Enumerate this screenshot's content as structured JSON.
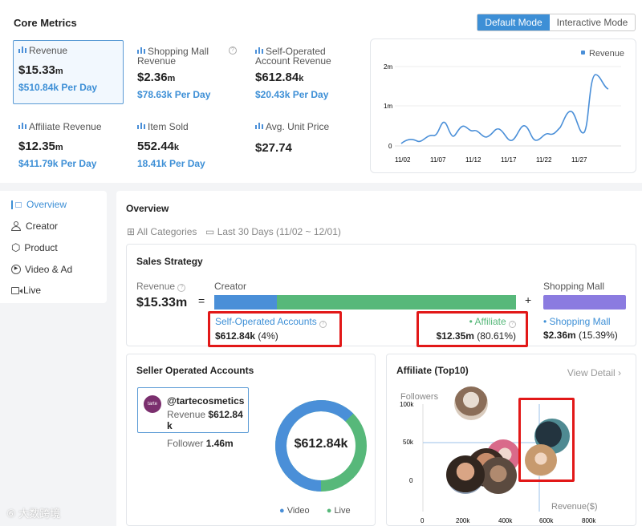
{
  "core_metrics": {
    "title": "Core Metrics",
    "mode_default": "Default Mode",
    "mode_interactive": "Interactive Mode",
    "metrics": [
      {
        "label": "Revenue",
        "value": "$15.33",
        "unit": "m",
        "per_day": "$510.84k Per Day"
      },
      {
        "label": "Shopping Mall Revenue",
        "value": "$2.36",
        "unit": "m",
        "per_day": "$78.63k Per Day"
      },
      {
        "label": "Self-Operated Account Revenue",
        "value": "$612.84",
        "unit": "k",
        "per_day": "$20.43k Per Day"
      },
      {
        "label": "Affiliate Revenue",
        "value": "$12.35",
        "unit": "m",
        "per_day": "$411.79k Per Day"
      },
      {
        "label": "Item Sold",
        "value": "552.44",
        "unit": "k",
        "per_day": "18.41k Per Day"
      },
      {
        "label": "Avg. Unit Price",
        "value": "$27.74",
        "unit": "",
        "per_day": ""
      }
    ],
    "chart": {
      "legend": "Revenue",
      "y_ticks": [
        "2m",
        "1m",
        "0"
      ],
      "x_ticks": [
        "11/02",
        "11/07",
        "11/12",
        "11/17",
        "11/22",
        "11/27"
      ]
    }
  },
  "sidebar": {
    "items": [
      {
        "label": "Overview",
        "icon": "overview-icon",
        "active": true
      },
      {
        "label": "Creator",
        "icon": "user-icon"
      },
      {
        "label": "Product",
        "icon": "box-icon"
      },
      {
        "label": "Video & Ad",
        "icon": "play-icon"
      },
      {
        "label": "Live",
        "icon": "camera-icon"
      }
    ]
  },
  "overview": {
    "title": "Overview",
    "filter_category": "All Categories",
    "filter_date": "Last 30 Days (11/02 ~ 12/01)",
    "sales_strategy": {
      "title": "Sales Strategy",
      "revenue_label": "Revenue",
      "revenue_value": "$15.33m",
      "creator_label": "Creator",
      "mall_label": "Shopping Mall",
      "self_label": "Self-Operated Accounts",
      "self_value": "$612.84k",
      "self_pct": "(4%)",
      "aff_label": "Affiliate",
      "aff_value": "$12.35m",
      "aff_pct": "(80.61%)",
      "mall_value": "$2.36m",
      "mall_pct": "(15.39%)",
      "equals": "=",
      "plus": "+"
    },
    "seller": {
      "title": "Seller Operated Accounts",
      "account": "@tartecosmetics",
      "avatar_text": "tarte",
      "revenue_label": "Revenue",
      "revenue_value": "$612.84",
      "revenue_unit": "k",
      "follower_label": "Follower",
      "follower_value": "1.46m",
      "donut_value": "$612.84k",
      "legend_video": "Video",
      "legend_live": "Live"
    },
    "affiliate": {
      "title": "Affiliate (Top10)",
      "view_detail": "View Detail",
      "y_label": "Followers",
      "y_ticks": [
        "100k",
        "50k",
        "0"
      ],
      "x_ticks": [
        "0",
        "200k",
        "400k",
        "600k",
        "800k"
      ],
      "x_label": "Revenue($)"
    }
  },
  "watermark": "大数跨境",
  "colors": {
    "accent": "#3d8fd6",
    "creator_green": "#57b87a",
    "mall_purple": "#8b7be0",
    "highlight": "#e21818"
  }
}
